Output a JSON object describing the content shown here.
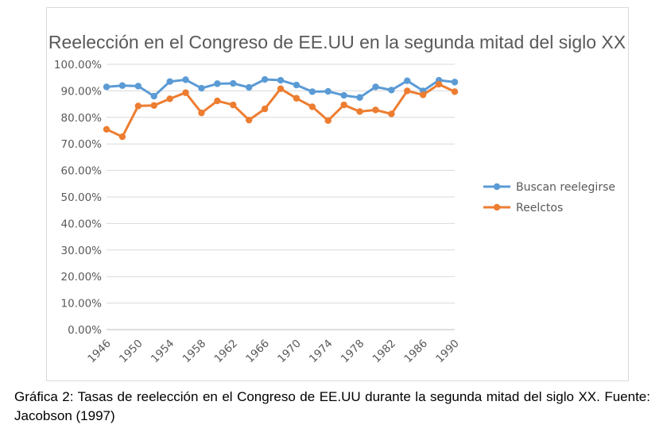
{
  "chart_data": {
    "type": "line",
    "title": "Reelección en el Congreso de EE.UU en la segunda mitad del siglo XX",
    "xlabel": "",
    "ylabel": "",
    "x": [
      1946,
      1948,
      1950,
      1952,
      1954,
      1956,
      1958,
      1960,
      1962,
      1964,
      1966,
      1968,
      1970,
      1972,
      1974,
      1976,
      1978,
      1980,
      1982,
      1984,
      1986,
      1988,
      1990
    ],
    "x_tick_labels": [
      "1946",
      "1950",
      "1954",
      "1958",
      "1962",
      "1966",
      "1970",
      "1974",
      "1978",
      "1982",
      "1986",
      "1990"
    ],
    "x_tick_values": [
      1946,
      1950,
      1954,
      1958,
      1962,
      1966,
      1970,
      1974,
      1978,
      1982,
      1986,
      1990
    ],
    "y_tick_labels": [
      "0.00%",
      "10.00%",
      "20.00%",
      "30.00%",
      "40.00%",
      "50.00%",
      "60.00%",
      "70.00%",
      "80.00%",
      "90.00%",
      "100.00%"
    ],
    "ylim": [
      0,
      1
    ],
    "grid": true,
    "legend_position": "right",
    "series": [
      {
        "name": "Buscan reelegirse",
        "color": "#5b9bd5",
        "values": [
          0.915,
          0.92,
          0.918,
          0.88,
          0.935,
          0.942,
          0.91,
          0.927,
          0.928,
          0.913,
          0.943,
          0.94,
          0.922,
          0.897,
          0.898,
          0.883,
          0.875,
          0.915,
          0.903,
          0.938,
          0.9,
          0.94,
          0.933
        ]
      },
      {
        "name": "Reelctos",
        "color": "#ed7d31",
        "values": [
          0.755,
          0.727,
          0.843,
          0.845,
          0.87,
          0.893,
          0.817,
          0.862,
          0.847,
          0.79,
          0.832,
          0.908,
          0.872,
          0.84,
          0.788,
          0.847,
          0.822,
          0.828,
          0.813,
          0.9,
          0.885,
          0.925,
          0.897
        ]
      }
    ]
  },
  "caption": "Gráfica 2: Tasas de reelección en el Congreso de EE.UU durante la segunda mitad del siglo XX. Fuente: Jacobson (1997)"
}
